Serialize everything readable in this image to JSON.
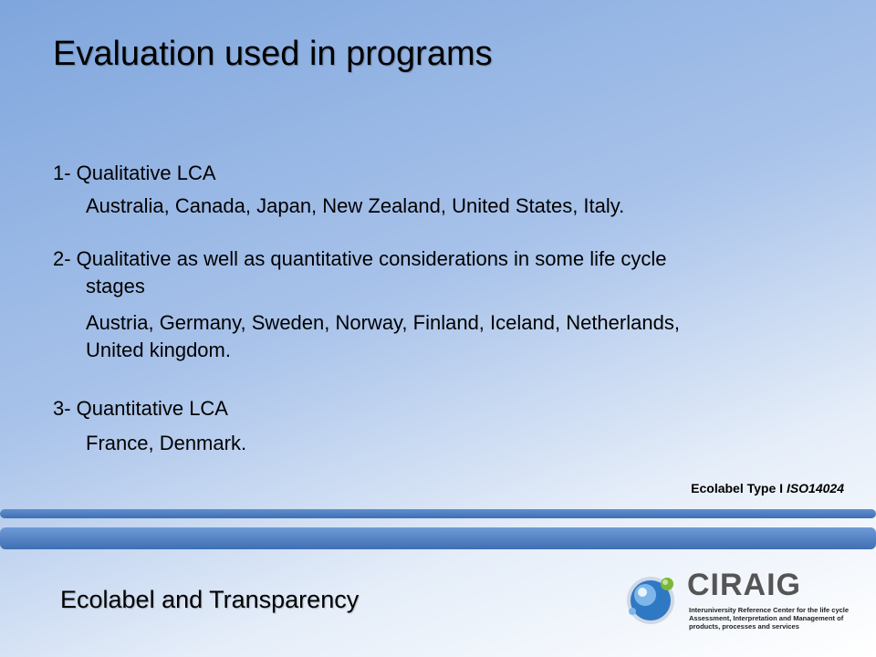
{
  "slide": {
    "title": "Evaluation used in programs",
    "items": [
      {
        "heading": "1- Qualitative LCA",
        "detail": "Australia, Canada, Japan, New Zealand, United States, Italy."
      },
      {
        "heading_line1": "2- Qualitative as well as quantitative considerations in some life cycle",
        "heading_line2": "stages",
        "detail_line1": "Austria, Germany, Sweden, Norway, Finland, Iceland, Netherlands,",
        "detail_line2": "United kingdom."
      },
      {
        "heading": "3- Quantitative LCA",
        "detail": "France, Denmark."
      }
    ],
    "ecolabel": {
      "text": "Ecolabel Type I ",
      "iso": "ISO14024"
    }
  },
  "footer": {
    "title": "Ecolabel and Transparency",
    "logo_name": "CIRAIG",
    "logo_subtitle": "Interuniversity Reference Center for the life cycle Assessment, Interpretation and Management of products, processes and services"
  }
}
